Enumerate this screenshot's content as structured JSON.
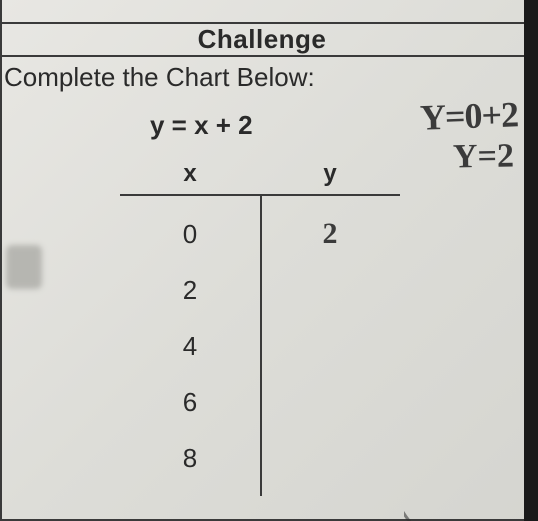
{
  "title": "Challenge",
  "prompt": "Complete the Chart Below:",
  "equation": "y = x + 2",
  "handwriting": {
    "line1": "Y=0+2",
    "line2": "Y=2"
  },
  "chart": {
    "headers": {
      "x": "x",
      "y": "y"
    },
    "rows": [
      {
        "x": "0",
        "y": "2"
      },
      {
        "x": "2",
        "y": ""
      },
      {
        "x": "4",
        "y": ""
      },
      {
        "x": "6",
        "y": ""
      },
      {
        "x": "8",
        "y": ""
      }
    ]
  },
  "colors": {
    "text": "#2a2a2a",
    "rule": "#3a3a3a",
    "background": "#e0dfda",
    "handwriting": "#3b3b3b"
  }
}
